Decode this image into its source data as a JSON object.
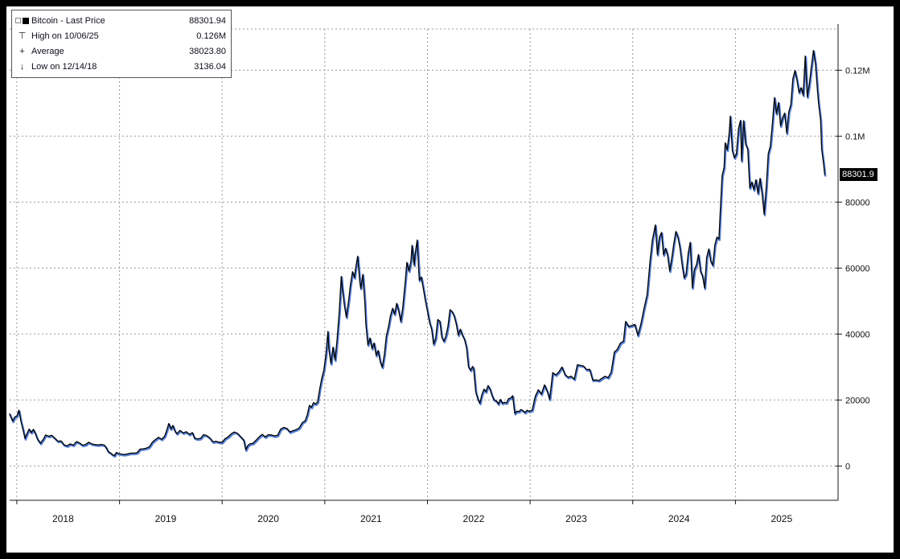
{
  "chart": {
    "last_price_badge": "88301.9",
    "legend": {
      "rows": [
        {
          "marker": "■",
          "label": "Bitcoin - Last Price",
          "value": "88301.94"
        },
        {
          "marker": "⊤",
          "label": "High on 10/06/25",
          "value": "0.126M"
        },
        {
          "marker": "+",
          "label": "Average",
          "value": "38023.80"
        },
        {
          "marker": "↓",
          "label": "Low on 12/14/18",
          "value": "3136.04"
        }
      ]
    },
    "colors": {
      "line": "#000000",
      "line_glow": "#2e62c9",
      "grid": "#9a9a9a",
      "badge_bg": "#000000",
      "badge_text": "#ffffff",
      "background": "#ffffff",
      "frame": "#000000"
    }
  },
  "chart_data": {
    "type": "line",
    "title": "Bitcoin - Last Price",
    "series_name": "Bitcoin",
    "last_price": 88301.94,
    "high": {
      "date": "10/06/25",
      "value": 126000,
      "label": "0.126M"
    },
    "average": 38023.8,
    "low": {
      "date": "12/14/18",
      "value": 3136.04
    },
    "legend_position": "top-left",
    "grid": true,
    "x_range": [
      2017.93,
      2026.0
    ],
    "y_range": [
      -10400,
      132500
    ],
    "x_ticks": [
      2018,
      2019,
      2020,
      2021,
      2022,
      2023,
      2024,
      2025
    ],
    "y_ticks": [
      {
        "v": 0,
        "label": "0"
      },
      {
        "v": 20000,
        "label": "20000"
      },
      {
        "v": 40000,
        "label": "40000"
      },
      {
        "v": 60000,
        "label": "60000"
      },
      {
        "v": 80000,
        "label": "80000"
      },
      {
        "v": 100000,
        "label": "0.1M"
      },
      {
        "v": 120000,
        "label": "0.12M"
      }
    ],
    "points": [
      [
        2017.93,
        15800
      ],
      [
        2017.96,
        13600
      ],
      [
        2017.98,
        14900
      ],
      [
        2018.0,
        15100
      ],
      [
        2018.02,
        16900
      ],
      [
        2018.04,
        13600
      ],
      [
        2018.06,
        11100
      ],
      [
        2018.08,
        8300
      ],
      [
        2018.1,
        9900
      ],
      [
        2018.12,
        11200
      ],
      [
        2018.14,
        10100
      ],
      [
        2018.16,
        11100
      ],
      [
        2018.18,
        9900
      ],
      [
        2018.2,
        8200
      ],
      [
        2018.23,
        6900
      ],
      [
        2018.26,
        8200
      ],
      [
        2018.28,
        9400
      ],
      [
        2018.31,
        9000
      ],
      [
        2018.34,
        9300
      ],
      [
        2018.37,
        8400
      ],
      [
        2018.4,
        7500
      ],
      [
        2018.43,
        7600
      ],
      [
        2018.46,
        6400
      ],
      [
        2018.49,
        6100
      ],
      [
        2018.52,
        6700
      ],
      [
        2018.55,
        6300
      ],
      [
        2018.58,
        7400
      ],
      [
        2018.61,
        7000
      ],
      [
        2018.64,
        6300
      ],
      [
        2018.67,
        6500
      ],
      [
        2018.7,
        7200
      ],
      [
        2018.73,
        6700
      ],
      [
        2018.76,
        6500
      ],
      [
        2018.79,
        6400
      ],
      [
        2018.82,
        6500
      ],
      [
        2018.85,
        6400
      ],
      [
        2018.87,
        5600
      ],
      [
        2018.89,
        4400
      ],
      [
        2018.91,
        4000
      ],
      [
        2018.93,
        3500
      ],
      [
        2018.95,
        3136
      ],
      [
        2018.97,
        4100
      ],
      [
        2018.99,
        3800
      ],
      [
        2019.02,
        3600
      ],
      [
        2019.05,
        3500
      ],
      [
        2019.08,
        3700
      ],
      [
        2019.11,
        3900
      ],
      [
        2019.14,
        3900
      ],
      [
        2019.17,
        4000
      ],
      [
        2019.2,
        5100
      ],
      [
        2019.23,
        5200
      ],
      [
        2019.26,
        5400
      ],
      [
        2019.29,
        5800
      ],
      [
        2019.32,
        7200
      ],
      [
        2019.35,
        8000
      ],
      [
        2019.38,
        8700
      ],
      [
        2019.41,
        8100
      ],
      [
        2019.44,
        9000
      ],
      [
        2019.46,
        10800
      ],
      [
        2019.48,
        12900
      ],
      [
        2019.5,
        11200
      ],
      [
        2019.52,
        12300
      ],
      [
        2019.54,
        10600
      ],
      [
        2019.56,
        9800
      ],
      [
        2019.59,
        10800
      ],
      [
        2019.62,
        10000
      ],
      [
        2019.65,
        10400
      ],
      [
        2019.68,
        9600
      ],
      [
        2019.71,
        10100
      ],
      [
        2019.73,
        8500
      ],
      [
        2019.76,
        8200
      ],
      [
        2019.79,
        8400
      ],
      [
        2019.82,
        9500
      ],
      [
        2019.85,
        9200
      ],
      [
        2019.88,
        8500
      ],
      [
        2019.91,
        7300
      ],
      [
        2019.94,
        7500
      ],
      [
        2019.97,
        7200
      ],
      [
        2020.0,
        7200
      ],
      [
        2020.03,
        8300
      ],
      [
        2020.06,
        8900
      ],
      [
        2020.09,
        9800
      ],
      [
        2020.12,
        10300
      ],
      [
        2020.15,
        9900
      ],
      [
        2020.18,
        8900
      ],
      [
        2020.21,
        7900
      ],
      [
        2020.23,
        4900
      ],
      [
        2020.25,
        6200
      ],
      [
        2020.27,
        6700
      ],
      [
        2020.3,
        6900
      ],
      [
        2020.33,
        7800
      ],
      [
        2020.36,
        8800
      ],
      [
        2020.39,
        9600
      ],
      [
        2020.42,
        8800
      ],
      [
        2020.45,
        9500
      ],
      [
        2020.48,
        9400
      ],
      [
        2020.51,
        9100
      ],
      [
        2020.54,
        9300
      ],
      [
        2020.57,
        11200
      ],
      [
        2020.6,
        11700
      ],
      [
        2020.63,
        11400
      ],
      [
        2020.66,
        10300
      ],
      [
        2020.69,
        10700
      ],
      [
        2020.72,
        11000
      ],
      [
        2020.75,
        11500
      ],
      [
        2020.78,
        13100
      ],
      [
        2020.81,
        13800
      ],
      [
        2020.83,
        15600
      ],
      [
        2020.85,
        18400
      ],
      [
        2020.87,
        17800
      ],
      [
        2020.89,
        19200
      ],
      [
        2020.91,
        18800
      ],
      [
        2020.93,
        19400
      ],
      [
        2020.95,
        23300
      ],
      [
        2020.97,
        26500
      ],
      [
        2020.99,
        29000
      ],
      [
        2021.01,
        33500
      ],
      [
        2021.03,
        40800
      ],
      [
        2021.04,
        35500
      ],
      [
        2021.06,
        31000
      ],
      [
        2021.08,
        36000
      ],
      [
        2021.1,
        32100
      ],
      [
        2021.12,
        38300
      ],
      [
        2021.14,
        46400
      ],
      [
        2021.16,
        57500
      ],
      [
        2021.17,
        54200
      ],
      [
        2021.19,
        48900
      ],
      [
        2021.21,
        45100
      ],
      [
        2021.23,
        49600
      ],
      [
        2021.25,
        54900
      ],
      [
        2021.27,
        58900
      ],
      [
        2021.29,
        57100
      ],
      [
        2021.3,
        59800
      ],
      [
        2021.32,
        63600
      ],
      [
        2021.34,
        56200
      ],
      [
        2021.35,
        53800
      ],
      [
        2021.37,
        58100
      ],
      [
        2021.39,
        49700
      ],
      [
        2021.4,
        43000
      ],
      [
        2021.42,
        36700
      ],
      [
        2021.44,
        38800
      ],
      [
        2021.46,
        35600
      ],
      [
        2021.48,
        37300
      ],
      [
        2021.5,
        33500
      ],
      [
        2021.52,
        35000
      ],
      [
        2021.54,
        31600
      ],
      [
        2021.56,
        29900
      ],
      [
        2021.58,
        33800
      ],
      [
        2021.6,
        39500
      ],
      [
        2021.62,
        42200
      ],
      [
        2021.64,
        45600
      ],
      [
        2021.66,
        47800
      ],
      [
        2021.68,
        46000
      ],
      [
        2021.7,
        49300
      ],
      [
        2021.72,
        47100
      ],
      [
        2021.74,
        43800
      ],
      [
        2021.76,
        48100
      ],
      [
        2021.78,
        54700
      ],
      [
        2021.8,
        61700
      ],
      [
        2021.82,
        59100
      ],
      [
        2021.84,
        62200
      ],
      [
        2021.85,
        66900
      ],
      [
        2021.87,
        60900
      ],
      [
        2021.88,
        64300
      ],
      [
        2021.9,
        68500
      ],
      [
        2021.92,
        56300
      ],
      [
        2021.94,
        57300
      ],
      [
        2021.96,
        53700
      ],
      [
        2021.98,
        50100
      ],
      [
        2022.0,
        46900
      ],
      [
        2022.02,
        43600
      ],
      [
        2022.04,
        41600
      ],
      [
        2022.06,
        36900
      ],
      [
        2022.08,
        38700
      ],
      [
        2022.1,
        44400
      ],
      [
        2022.12,
        43900
      ],
      [
        2022.14,
        39100
      ],
      [
        2022.16,
        37800
      ],
      [
        2022.18,
        39400
      ],
      [
        2022.2,
        42400
      ],
      [
        2022.22,
        47400
      ],
      [
        2022.24,
        46800
      ],
      [
        2022.26,
        45500
      ],
      [
        2022.28,
        43200
      ],
      [
        2022.3,
        39700
      ],
      [
        2022.32,
        41500
      ],
      [
        2022.34,
        39700
      ],
      [
        2022.36,
        38500
      ],
      [
        2022.38,
        36000
      ],
      [
        2022.4,
        30100
      ],
      [
        2022.42,
        29000
      ],
      [
        2022.44,
        30200
      ],
      [
        2022.45,
        29500
      ],
      [
        2022.47,
        22500
      ],
      [
        2022.49,
        20400
      ],
      [
        2022.51,
        19000
      ],
      [
        2022.53,
        21600
      ],
      [
        2022.55,
        23300
      ],
      [
        2022.57,
        22500
      ],
      [
        2022.59,
        24400
      ],
      [
        2022.61,
        23300
      ],
      [
        2022.63,
        21300
      ],
      [
        2022.65,
        20000
      ],
      [
        2022.67,
        19800
      ],
      [
        2022.69,
        18800
      ],
      [
        2022.71,
        20200
      ],
      [
        2022.73,
        19000
      ],
      [
        2022.75,
        19300
      ],
      [
        2022.77,
        19100
      ],
      [
        2022.79,
        20400
      ],
      [
        2022.81,
        20600
      ],
      [
        2022.83,
        21300
      ],
      [
        2022.85,
        15900
      ],
      [
        2022.87,
        16600
      ],
      [
        2022.89,
        16500
      ],
      [
        2022.91,
        17100
      ],
      [
        2022.93,
        16800
      ],
      [
        2022.95,
        16200
      ],
      [
        2022.97,
        16900
      ],
      [
        2022.99,
        16600
      ],
      [
        2023.02,
        16900
      ],
      [
        2023.05,
        21100
      ],
      [
        2023.08,
        23100
      ],
      [
        2023.11,
        21800
      ],
      [
        2023.14,
        24600
      ],
      [
        2023.17,
        22400
      ],
      [
        2023.19,
        20200
      ],
      [
        2023.22,
        28300
      ],
      [
        2023.25,
        27600
      ],
      [
        2023.28,
        28500
      ],
      [
        2023.31,
        30000
      ],
      [
        2023.34,
        27700
      ],
      [
        2023.37,
        26900
      ],
      [
        2023.4,
        27200
      ],
      [
        2023.43,
        26300
      ],
      [
        2023.46,
        30700
      ],
      [
        2023.49,
        30500
      ],
      [
        2023.52,
        30300
      ],
      [
        2023.55,
        29200
      ],
      [
        2023.58,
        29300
      ],
      [
        2023.61,
        26000
      ],
      [
        2023.64,
        26100
      ],
      [
        2023.67,
        25900
      ],
      [
        2023.7,
        26600
      ],
      [
        2023.73,
        27200
      ],
      [
        2023.76,
        26800
      ],
      [
        2023.79,
        28500
      ],
      [
        2023.82,
        34500
      ],
      [
        2023.85,
        35400
      ],
      [
        2023.88,
        37300
      ],
      [
        2023.91,
        37800
      ],
      [
        2023.93,
        43800
      ],
      [
        2023.96,
        42300
      ],
      [
        2023.99,
        42600
      ],
      [
        2024.02,
        42900
      ],
      [
        2024.05,
        39600
      ],
      [
        2024.08,
        43100
      ],
      [
        2024.11,
        47800
      ],
      [
        2024.14,
        52000
      ],
      [
        2024.17,
        62500
      ],
      [
        2024.19,
        68300
      ],
      [
        2024.22,
        73100
      ],
      [
        2024.24,
        64100
      ],
      [
        2024.26,
        69400
      ],
      [
        2024.28,
        70800
      ],
      [
        2024.3,
        64000
      ],
      [
        2024.32,
        66000
      ],
      [
        2024.34,
        63800
      ],
      [
        2024.36,
        59100
      ],
      [
        2024.38,
        62900
      ],
      [
        2024.4,
        67500
      ],
      [
        2024.42,
        71100
      ],
      [
        2024.44,
        69400
      ],
      [
        2024.46,
        66200
      ],
      [
        2024.48,
        61300
      ],
      [
        2024.5,
        57000
      ],
      [
        2024.52,
        58200
      ],
      [
        2024.54,
        64600
      ],
      [
        2024.56,
        67800
      ],
      [
        2024.58,
        54000
      ],
      [
        2024.6,
        59400
      ],
      [
        2024.62,
        61000
      ],
      [
        2024.64,
        64100
      ],
      [
        2024.66,
        59000
      ],
      [
        2024.68,
        57600
      ],
      [
        2024.7,
        53900
      ],
      [
        2024.72,
        63200
      ],
      [
        2024.74,
        65800
      ],
      [
        2024.76,
        62100
      ],
      [
        2024.78,
        60800
      ],
      [
        2024.8,
        67000
      ],
      [
        2024.82,
        69400
      ],
      [
        2024.84,
        68800
      ],
      [
        2024.85,
        75600
      ],
      [
        2024.87,
        88000
      ],
      [
        2024.89,
        90500
      ],
      [
        2024.9,
        98000
      ],
      [
        2024.92,
        95800
      ],
      [
        2024.94,
        101200
      ],
      [
        2024.95,
        106100
      ],
      [
        2024.97,
        95700
      ],
      [
        2024.99,
        93400
      ],
      [
        2025.01,
        94600
      ],
      [
        2025.03,
        102300
      ],
      [
        2025.05,
        104800
      ],
      [
        2025.06,
        92500
      ],
      [
        2025.08,
        104700
      ],
      [
        2025.1,
        97600
      ],
      [
        2025.12,
        96100
      ],
      [
        2025.14,
        84300
      ],
      [
        2025.16,
        86100
      ],
      [
        2025.18,
        83700
      ],
      [
        2025.2,
        86800
      ],
      [
        2025.22,
        82600
      ],
      [
        2025.24,
        87200
      ],
      [
        2025.26,
        82500
      ],
      [
        2025.28,
        76300
      ],
      [
        2025.3,
        84400
      ],
      [
        2025.32,
        94700
      ],
      [
        2025.34,
        97000
      ],
      [
        2025.36,
        103700
      ],
      [
        2025.38,
        111700
      ],
      [
        2025.4,
        106800
      ],
      [
        2025.42,
        110200
      ],
      [
        2025.44,
        103100
      ],
      [
        2025.46,
        105600
      ],
      [
        2025.48,
        107000
      ],
      [
        2025.5,
        100900
      ],
      [
        2025.52,
        107300
      ],
      [
        2025.54,
        109600
      ],
      [
        2025.56,
        117400
      ],
      [
        2025.58,
        119900
      ],
      [
        2025.6,
        117000
      ],
      [
        2025.62,
        113200
      ],
      [
        2025.64,
        114700
      ],
      [
        2025.66,
        112400
      ],
      [
        2025.68,
        124300
      ],
      [
        2025.7,
        111900
      ],
      [
        2025.72,
        115800
      ],
      [
        2025.74,
        121000
      ],
      [
        2025.76,
        126000
      ],
      [
        2025.78,
        122000
      ],
      [
        2025.8,
        113500
      ],
      [
        2025.81,
        110100
      ],
      [
        2025.83,
        104800
      ],
      [
        2025.84,
        96100
      ],
      [
        2025.86,
        91400
      ],
      [
        2025.87,
        88301.94
      ]
    ]
  }
}
